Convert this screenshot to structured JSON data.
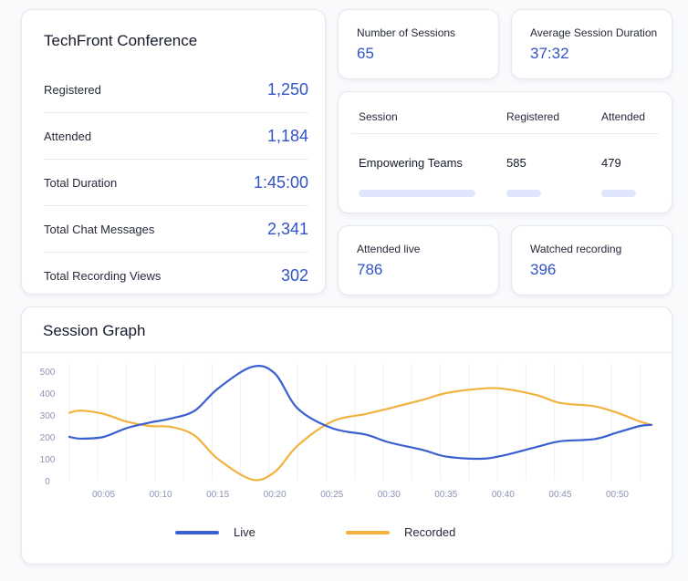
{
  "conference": {
    "title": "TechFront Conference",
    "rows": [
      {
        "label": "Registered",
        "value": "1,250"
      },
      {
        "label": "Attended",
        "value": "1,184"
      },
      {
        "label": "Total Duration",
        "value": "1:45:00"
      },
      {
        "label": "Total Chat Messages",
        "value": "2,341"
      },
      {
        "label": "Total Recording Views",
        "value": "302"
      }
    ]
  },
  "stats": {
    "sessions": {
      "label": "Number of Sessions",
      "value": "65"
    },
    "avg_duration": {
      "label": "Average Session Duration",
      "value": "37:32"
    },
    "attended_live": {
      "label": "Attended live",
      "value": "786"
    },
    "watched_recording": {
      "label": "Watched recording",
      "value": "396"
    }
  },
  "session_table": {
    "headers": {
      "session": "Session",
      "registered": "Registered",
      "attended": "Attended"
    },
    "row": {
      "session": "Empowering Teams",
      "registered": "585",
      "attended": "479"
    }
  },
  "graph": {
    "title": "Session Graph",
    "legend": {
      "live": "Live",
      "recorded": "Recorded"
    }
  },
  "colors": {
    "live": "#3a5fd0",
    "recorded": "#f2b23e",
    "accent": "#3253c8"
  },
  "chart_data": {
    "type": "line",
    "x": [
      "00:02",
      "00:03",
      "00:05",
      "00:07",
      "00:09",
      "00:11",
      "00:13",
      "00:15",
      "00:18",
      "00:20",
      "00:22",
      "00:25",
      "00:28",
      "00:30",
      "00:33",
      "00:35",
      "00:38",
      "00:40",
      "00:43",
      "00:45",
      "00:48",
      "00:50",
      "00:52",
      "00:53"
    ],
    "x_ticks": [
      "00:05",
      "00:10",
      "00:15",
      "00:20",
      "00:25",
      "00:30",
      "00:35",
      "00:40",
      "00:45",
      "00:50"
    ],
    "series": [
      {
        "name": "Live",
        "color": "#3a5fd0",
        "values": [
          200,
          192,
          200,
          240,
          265,
          285,
          320,
          420,
          520,
          490,
          330,
          240,
          210,
          175,
          140,
          110,
          100,
          115,
          155,
          180,
          190,
          220,
          250,
          255
        ]
      },
      {
        "name": "Recorded",
        "color": "#f2b23e",
        "values": [
          310,
          320,
          305,
          270,
          250,
          245,
          205,
          100,
          5,
          40,
          160,
          270,
          305,
          330,
          370,
          400,
          420,
          420,
          390,
          355,
          340,
          310,
          270,
          255
        ]
      }
    ],
    "ylim": [
      0,
      500
    ],
    "y_ticks": [
      0,
      100,
      200,
      300,
      400,
      500
    ],
    "grid": "vertical",
    "legend_position": "bottom"
  }
}
